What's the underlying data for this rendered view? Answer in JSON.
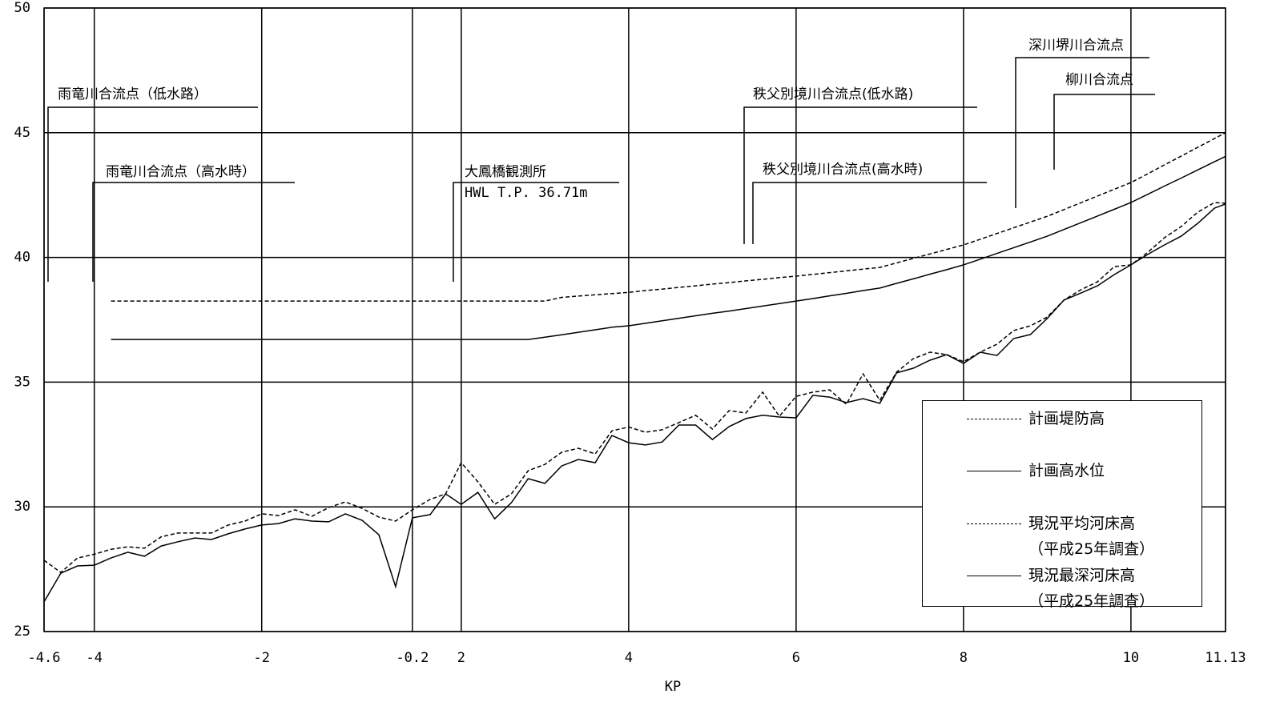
{
  "chart_data": {
    "type": "line",
    "x_label": "KP",
    "xlim": [
      -4.6,
      11.13
    ],
    "x_break": [
      -0.2,
      2
    ],
    "xticks": [
      -4.6,
      -4,
      -2,
      -0.2,
      2,
      4,
      6,
      8,
      10,
      11.13
    ],
    "ylim": [
      25,
      50
    ],
    "yticks": [
      25,
      30,
      35,
      40,
      45,
      50
    ],
    "grid": true,
    "legend_position": "lower right",
    "x": [
      -4.6,
      -4.4,
      -4.2,
      -4.0,
      -3.8,
      -3.6,
      -3.4,
      -3.2,
      -3.0,
      -2.8,
      -2.6,
      -2.4,
      -2.2,
      -2.0,
      -1.8,
      -1.6,
      -1.4,
      -1.2,
      -1.0,
      -0.8,
      -0.6,
      -0.4,
      -0.2,
      0.6,
      1.3,
      2.0,
      2.2,
      2.4,
      2.6,
      2.8,
      3.0,
      3.2,
      3.4,
      3.6,
      3.8,
      4.0,
      4.2,
      4.4,
      4.6,
      4.8,
      5.0,
      5.2,
      5.4,
      5.6,
      5.8,
      6.0,
      6.2,
      6.4,
      6.6,
      6.8,
      7.0,
      7.2,
      7.4,
      7.6,
      7.8,
      8.0,
      8.2,
      8.4,
      8.6,
      8.8,
      9.0,
      9.2,
      9.4,
      9.6,
      9.8,
      10.0,
      10.2,
      10.4,
      10.6,
      10.8,
      11.0,
      11.13
    ],
    "series": [
      {
        "name": "計画堤防高",
        "color": "#000000",
        "linestyle": "dashed",
        "values": [
          null,
          null,
          null,
          null,
          38.25,
          38.25,
          38.25,
          38.25,
          38.25,
          38.25,
          38.25,
          38.25,
          38.25,
          38.25,
          38.25,
          38.25,
          38.25,
          38.25,
          38.25,
          38.25,
          38.25,
          38.25,
          38.25,
          38.25,
          38.25,
          38.25,
          38.25,
          38.25,
          38.25,
          38.25,
          38.25,
          38.4,
          38.45,
          38.5,
          38.55,
          38.6,
          38.67,
          38.73,
          38.8,
          38.86,
          38.93,
          38.99,
          39.06,
          39.12,
          39.19,
          39.25,
          39.32,
          39.39,
          39.46,
          39.53,
          39.6,
          39.78,
          39.96,
          40.14,
          40.32,
          40.5,
          40.73,
          40.96,
          41.19,
          41.42,
          41.65,
          41.92,
          42.19,
          42.46,
          42.73,
          43.0,
          43.35,
          43.71,
          44.06,
          44.42,
          44.77,
          45.0
        ]
      },
      {
        "name": "計画高水位",
        "color": "#000000",
        "linestyle": "solid",
        "values": [
          null,
          null,
          null,
          null,
          36.71,
          36.71,
          36.71,
          36.71,
          36.71,
          36.71,
          36.71,
          36.71,
          36.71,
          36.71,
          36.71,
          36.71,
          36.71,
          36.71,
          36.71,
          36.71,
          36.71,
          36.71,
          36.71,
          36.71,
          36.71,
          36.71,
          36.71,
          36.71,
          36.71,
          36.71,
          36.8,
          36.9,
          37.0,
          37.1,
          37.2,
          37.26,
          37.36,
          37.46,
          37.56,
          37.66,
          37.76,
          37.85,
          37.95,
          38.05,
          38.15,
          38.25,
          38.35,
          38.46,
          38.56,
          38.67,
          38.77,
          38.96,
          39.14,
          39.33,
          39.51,
          39.7,
          39.93,
          40.16,
          40.39,
          40.62,
          40.85,
          41.12,
          41.39,
          41.66,
          41.93,
          42.2,
          42.53,
          42.86,
          43.18,
          43.51,
          43.84,
          44.05
        ]
      },
      {
        "name": "現況平均河床高\n（平成25年調査）",
        "color": "#000000",
        "linestyle": "dashed",
        "values": [
          27.86,
          27.37,
          27.95,
          28.1,
          28.3,
          28.4,
          28.34,
          28.8,
          28.95,
          28.95,
          28.95,
          29.27,
          29.43,
          29.72,
          29.65,
          29.88,
          29.62,
          29.97,
          30.2,
          29.94,
          29.59,
          29.43,
          29.88,
          30.3,
          30.52,
          31.77,
          31.0,
          30.1,
          30.52,
          31.45,
          31.7,
          32.19,
          32.35,
          32.12,
          33.05,
          33.2,
          32.99,
          33.09,
          33.38,
          33.67,
          33.12,
          33.86,
          33.76,
          34.6,
          33.63,
          34.43,
          34.6,
          34.69,
          34.11,
          35.33,
          34.27,
          35.4,
          35.94,
          36.2,
          36.1,
          35.82,
          36.2,
          36.52,
          37.07,
          37.26,
          37.61,
          38.29,
          38.7,
          39.02,
          39.63,
          39.7,
          40.2,
          40.79,
          41.24,
          41.82,
          42.2,
          42.17
        ]
      },
      {
        "name": "現況最深河床高\n（平成25年調査）",
        "color": "#000000",
        "linestyle": "solid",
        "values": [
          26.19,
          27.34,
          27.63,
          27.66,
          27.95,
          28.18,
          28.02,
          28.43,
          28.6,
          28.75,
          28.69,
          28.92,
          29.11,
          29.27,
          29.33,
          29.52,
          29.43,
          29.4,
          29.72,
          29.46,
          28.88,
          26.8,
          29.56,
          29.69,
          30.52,
          30.1,
          30.58,
          29.52,
          30.17,
          31.13,
          30.94,
          31.64,
          31.9,
          31.77,
          32.86,
          32.57,
          32.48,
          32.6,
          33.28,
          33.28,
          32.7,
          33.22,
          33.54,
          33.67,
          33.6,
          33.57,
          34.47,
          34.4,
          34.18,
          34.34,
          34.15,
          35.37,
          35.56,
          35.88,
          36.1,
          35.75,
          36.2,
          36.07,
          36.75,
          36.91,
          37.55,
          38.29,
          38.57,
          38.86,
          39.31,
          39.7,
          40.12,
          40.5,
          40.85,
          41.37,
          41.98,
          42.14
        ]
      }
    ],
    "annotations": [
      {
        "text": "雨竜川合流点（低水路）"
      },
      {
        "text": "雨竜川合流点（高水時）"
      },
      {
        "text": "大鳳橋観測所",
        "subtext": "HWL T.P. 36.71m"
      },
      {
        "text": "秩父別境川合流点(低水路)"
      },
      {
        "text": "秩父別境川合流点(高水時)"
      },
      {
        "text": "深川堺川合流点"
      },
      {
        "text": "柳川合流点"
      }
    ]
  }
}
